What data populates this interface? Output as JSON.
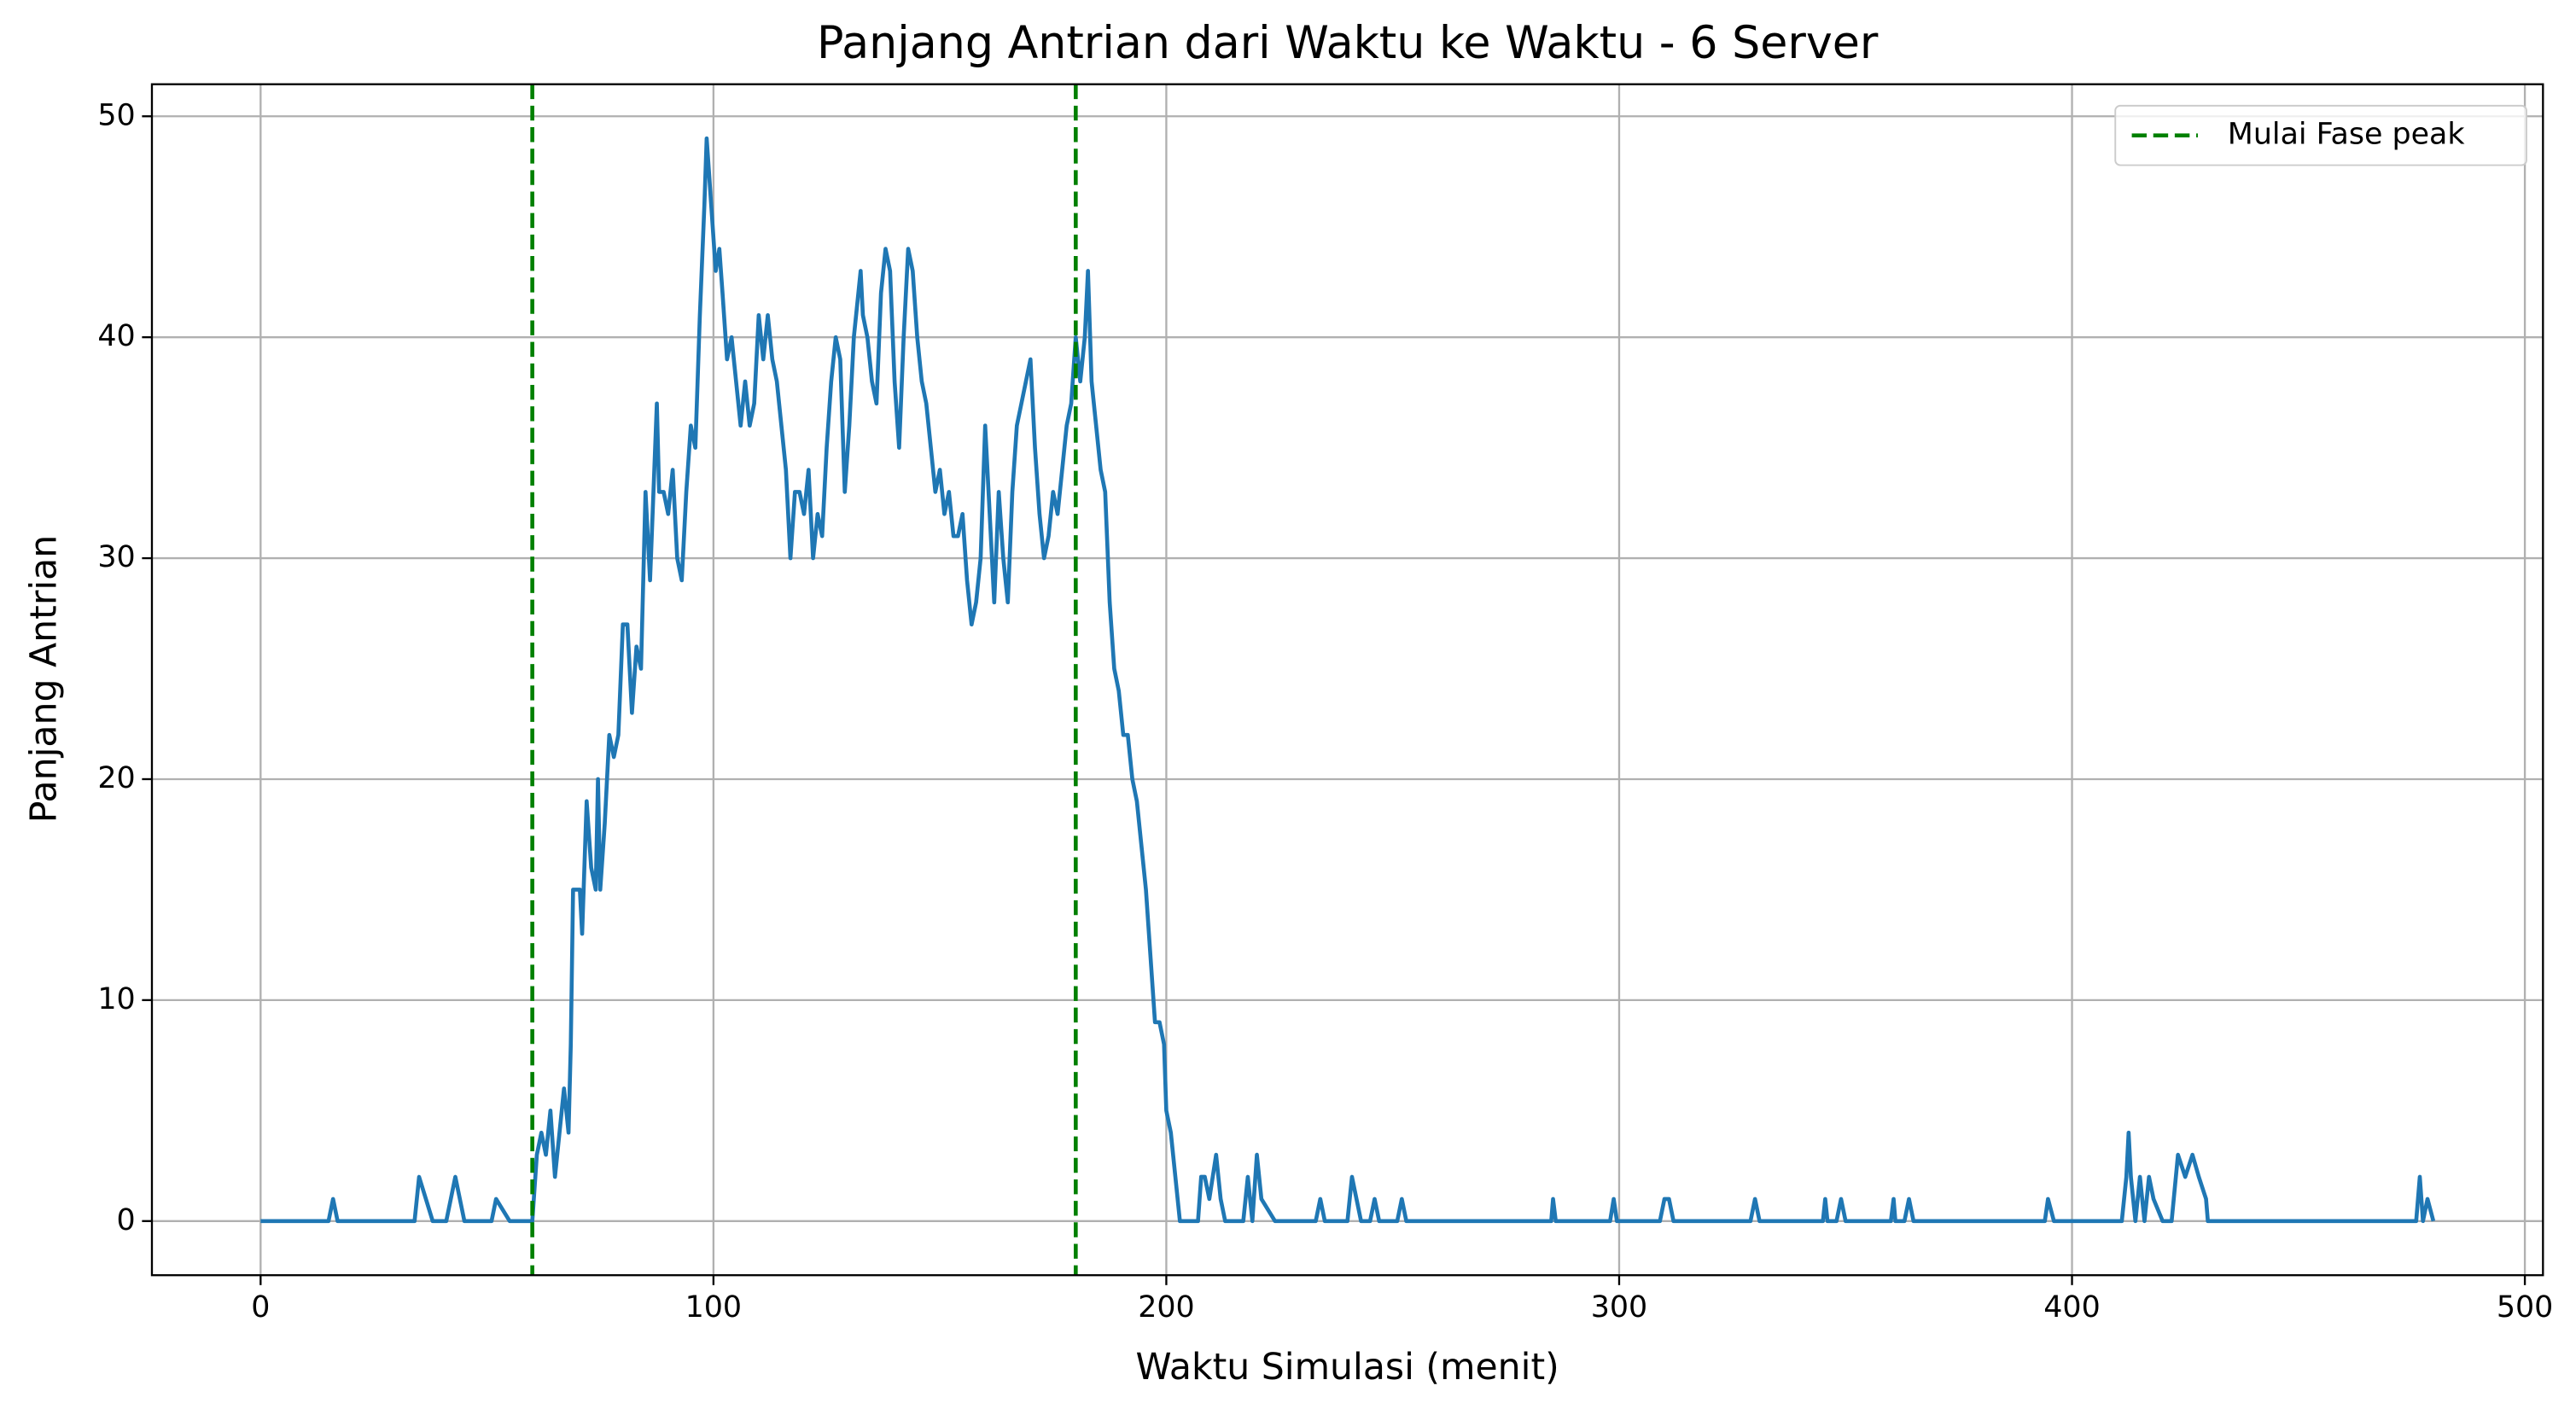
{
  "chart_data": {
    "type": "line",
    "title": "Panjang Antrian dari Waktu ke Waktu - 6 Server",
    "xlabel": "Waktu Simulasi (menit)",
    "ylabel": "Panjang Antrian",
    "color": "#1f77b4",
    "x": [
      0,
      15,
      16,
      17,
      34,
      35,
      38,
      41,
      43,
      45,
      51,
      52,
      55,
      60,
      61,
      62,
      63,
      64,
      65,
      66,
      67,
      68,
      68.5,
      69,
      70.5,
      71,
      72,
      73,
      74,
      74.5,
      75,
      76,
      77,
      78,
      79,
      80,
      81,
      82,
      83,
      84,
      85,
      86,
      87.5,
      88,
      89,
      90,
      91,
      92,
      93,
      94,
      95,
      96,
      97,
      98,
      98.5,
      99.5,
      100.5,
      101.3,
      102,
      103,
      104,
      105,
      106,
      107,
      108,
      109,
      110,
      111,
      112,
      113,
      114,
      115,
      116,
      117,
      118,
      119,
      120,
      121,
      122,
      123,
      124,
      125,
      126,
      127,
      128,
      129,
      130,
      131,
      132.5,
      133,
      134,
      135,
      136,
      137,
      138,
      139,
      140,
      141,
      142,
      143,
      144,
      145,
      146,
      147,
      148,
      149,
      150,
      151,
      152,
      153,
      154,
      155,
      156,
      157,
      158,
      159,
      160,
      161,
      162,
      163,
      164,
      165,
      166,
      167,
      168,
      169,
      170,
      171,
      172,
      173,
      174,
      175,
      176,
      177,
      178,
      179,
      180,
      181,
      182,
      182.7,
      183.5,
      184.5,
      185.5,
      186.5,
      187.5,
      188.5,
      189.5,
      190.5,
      191.5,
      192.5,
      193.5,
      194.5,
      195.5,
      196.5,
      197.5,
      198.5,
      199.5,
      200,
      201,
      202,
      203,
      207,
      207.7,
      208.5,
      209.5,
      211,
      212,
      213,
      217,
      218,
      219,
      220,
      221,
      224,
      233,
      234,
      235,
      240,
      241,
      242,
      243,
      245,
      246,
      247,
      251,
      252,
      253,
      285,
      285.4,
      286,
      298,
      298.8,
      299.5,
      309,
      310,
      311,
      312,
      329,
      330,
      331,
      345,
      345.5,
      346,
      348,
      349,
      350,
      360,
      360.6,
      361,
      363,
      364,
      365,
      394,
      394.7,
      396,
      411,
      412,
      412.5,
      413,
      414,
      415,
      416,
      417,
      418,
      420,
      422,
      423.4,
      425,
      426.6,
      428,
      429.6,
      430,
      476,
      476.8,
      477.5,
      478.5,
      479.8
    ],
    "values": [
      0,
      0,
      1,
      0,
      0,
      2,
      0,
      0,
      2,
      0,
      0,
      1,
      0,
      0,
      3,
      4,
      3,
      5,
      2,
      4,
      6,
      4,
      8,
      15,
      15,
      13,
      19,
      16,
      15,
      20,
      15,
      18,
      22,
      21,
      22,
      27,
      27,
      23,
      26,
      25,
      33,
      29,
      37,
      33,
      33,
      32,
      34,
      30,
      29,
      33,
      36,
      35,
      41,
      46,
      49,
      46,
      43,
      44,
      42,
      39,
      40,
      38,
      36,
      38,
      36,
      37,
      41,
      39,
      41,
      39,
      38,
      36,
      34,
      30,
      33,
      33,
      32,
      34,
      30,
      32,
      31,
      35,
      38,
      40,
      39,
      33,
      36,
      40,
      43,
      41,
      40,
      38,
      37,
      42,
      44,
      43,
      38,
      35,
      40,
      44,
      43,
      40,
      38,
      37,
      35,
      33,
      34,
      32,
      33,
      31,
      31,
      32,
      29,
      27,
      28,
      30,
      36,
      32,
      28,
      33,
      30,
      28,
      33,
      36,
      37,
      38,
      39,
      35,
      32,
      30,
      31,
      33,
      32,
      34,
      36,
      37,
      40,
      38,
      40,
      43,
      38,
      36,
      34,
      33,
      28,
      25,
      24,
      22,
      22,
      20,
      19,
      17,
      15,
      12,
      9,
      9,
      8,
      5,
      4,
      2,
      0,
      0,
      2,
      2,
      1,
      3,
      1,
      0,
      0,
      2,
      0,
      3,
      1,
      0,
      0,
      1,
      0,
      0,
      2,
      1,
      0,
      0,
      1,
      0,
      0,
      1,
      0,
      0,
      1,
      0,
      0,
      1,
      0,
      0,
      1,
      1,
      0,
      0,
      1,
      0,
      0,
      1,
      0,
      0,
      1,
      0,
      0,
      1,
      0,
      0,
      1,
      0,
      0,
      1,
      0,
      0,
      2,
      4,
      2,
      0,
      2,
      0,
      2,
      1,
      0,
      0,
      3,
      2,
      3,
      2,
      1,
      0,
      0,
      2,
      0,
      1,
      0
    ],
    "vlines": {
      "name": "Mulai Fase peak",
      "color": "green",
      "values": [
        60,
        180
      ]
    },
    "xlim": [
      -24,
      504
    ],
    "ylim": [
      -2.45,
      51.45
    ],
    "xticks": [
      0,
      100,
      200,
      300,
      400,
      500
    ],
    "yticks": [
      0,
      10,
      20,
      30,
      40,
      50
    ],
    "grid": true,
    "legend": "upper right"
  }
}
